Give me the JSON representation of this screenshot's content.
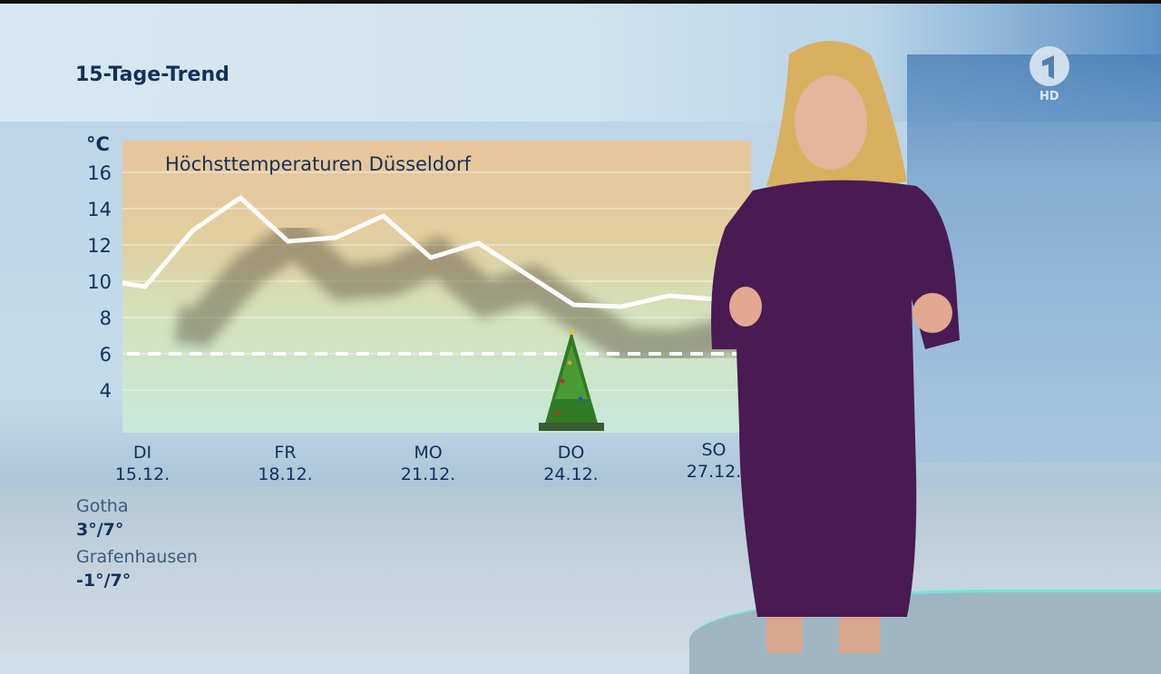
{
  "header": {
    "title": "15-Tage-Trend"
  },
  "channel": {
    "logo": "Das Erste 1",
    "badge": "HD"
  },
  "stations": [
    {
      "name": "Gotha",
      "temps": "3°/7°"
    },
    {
      "name": "Grafenhausen",
      "temps": "-1°/7°"
    }
  ],
  "colors": {
    "text": "#12305a",
    "line": "#ffffff",
    "dress": "#4a1a52"
  },
  "chart_data": {
    "type": "line",
    "title": "Höchsttemperaturen Düsseldorf",
    "ylabel": "°C",
    "ylim": [
      2,
      18
    ],
    "yticks": [
      4,
      6,
      8,
      10,
      12,
      14,
      16
    ],
    "grid": true,
    "x": [
      "15.12.",
      "16.12.",
      "17.12.",
      "18.12.",
      "19.12.",
      "20.12.",
      "21.12.",
      "22.12.",
      "23.12.",
      "24.12.",
      "25.12.",
      "26.12.",
      "27.12."
    ],
    "series": [
      {
        "values": [
          9.7,
          12.8,
          14.6,
          12.2,
          12.4,
          13.6,
          11.3,
          12.1,
          10.4,
          8.7,
          8.6,
          9.2,
          9.0
        ]
      }
    ],
    "reference_line": 6,
    "xticks": [
      {
        "day": "DI",
        "date": "15.12."
      },
      {
        "day": "FR",
        "date": "18.12."
      },
      {
        "day": "MO",
        "date": "21.12."
      },
      {
        "day": "DO",
        "date": "24.12."
      },
      {
        "day": "SO",
        "date": "27.12."
      }
    ],
    "annotation": "christmas-tree-icon at 24.12."
  }
}
